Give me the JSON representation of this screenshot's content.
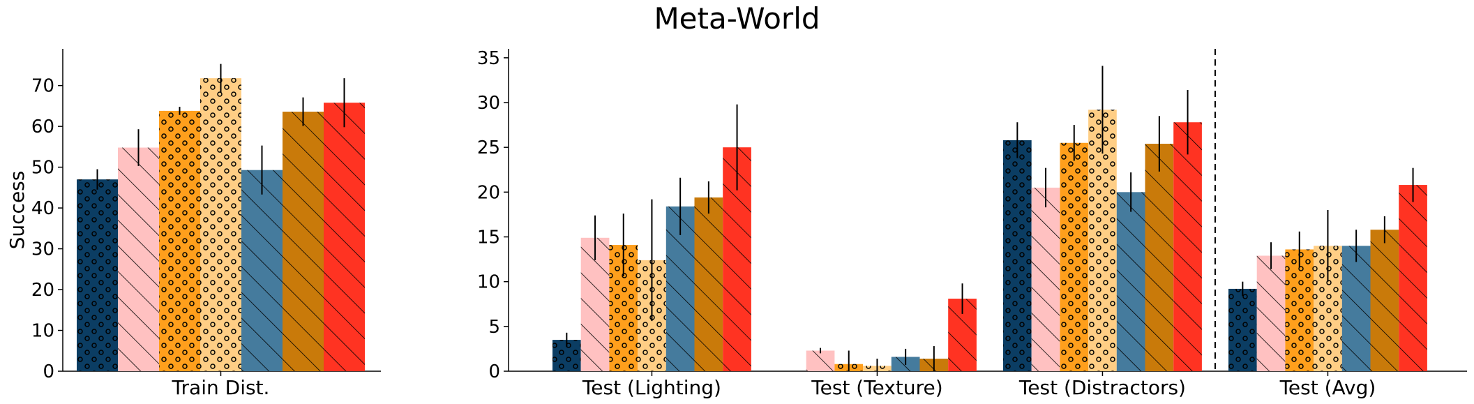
{
  "title": "Meta-World",
  "colors": {
    "s1": "#0b3d63",
    "s2": "#ffc1c1",
    "s3": "#ff9f1c",
    "s4": "#ffce85",
    "s5": "#457b9d",
    "s6": "#c97a0a",
    "s7": "#ff3322"
  },
  "chart_data": [
    {
      "type": "bar",
      "ylabel": "Success",
      "ylim": [
        0,
        79
      ],
      "yticks": [
        0,
        10,
        20,
        30,
        40,
        50,
        60,
        70
      ],
      "categories": [
        "Train Dist."
      ],
      "series": [
        {
          "values": [
            47.0
          ],
          "err": [
            2.5
          ],
          "color": "#0b3d63",
          "hatch": "dots"
        },
        {
          "values": [
            54.8
          ],
          "err": [
            4.5
          ],
          "color": "#ffc1c1",
          "hatch": "slash"
        },
        {
          "values": [
            63.8
          ],
          "err": [
            1.0
          ],
          "color": "#ff9f1c",
          "hatch": "dots"
        },
        {
          "values": [
            71.8
          ],
          "err": [
            3.5
          ],
          "color": "#ffce85",
          "hatch": "dots"
        },
        {
          "values": [
            49.3
          ],
          "err": [
            6.0
          ],
          "color": "#457b9d",
          "hatch": "slash"
        },
        {
          "values": [
            63.6
          ],
          "err": [
            3.5
          ],
          "color": "#c97a0a",
          "hatch": "slash"
        },
        {
          "values": [
            65.8
          ],
          "err": [
            6.0
          ],
          "color": "#ff3322",
          "hatch": "slash"
        }
      ],
      "grid": false
    },
    {
      "type": "bar",
      "ylim": [
        0,
        36
      ],
      "yticks": [
        0,
        5,
        10,
        15,
        20,
        25,
        30,
        35
      ],
      "categories": [
        "Test (Lighting)",
        "Test (Texture)",
        "Test (Distractors)",
        "Test (Avg)"
      ],
      "divider_after_category": 2,
      "series": [
        {
          "values": [
            3.5,
            0.0,
            25.8,
            9.2
          ],
          "err": [
            0.8,
            0.0,
            2.0,
            0.8
          ],
          "color": "#0b3d63",
          "hatch": "dots"
        },
        {
          "values": [
            14.9,
            2.3,
            20.5,
            12.9
          ],
          "err": [
            2.5,
            0.3,
            2.2,
            1.5
          ],
          "color": "#ffc1c1",
          "hatch": "slash"
        },
        {
          "values": [
            14.1,
            0.8,
            25.5,
            13.6
          ],
          "err": [
            3.5,
            1.5,
            2.0,
            2.0
          ],
          "color": "#ff9f1c",
          "hatch": "dots"
        },
        {
          "values": [
            12.4,
            0.6,
            29.2,
            14.0
          ],
          "err": [
            6.8,
            0.8,
            4.9,
            4.0
          ],
          "color": "#ffce85",
          "hatch": "dots"
        },
        {
          "values": [
            18.4,
            1.6,
            20.0,
            14.0
          ],
          "err": [
            3.2,
            0.9,
            2.2,
            1.8
          ],
          "color": "#457b9d",
          "hatch": "slash"
        },
        {
          "values": [
            19.4,
            1.4,
            25.4,
            15.8
          ],
          "err": [
            1.8,
            1.4,
            3.1,
            1.5
          ],
          "color": "#c97a0a",
          "hatch": "slash"
        },
        {
          "values": [
            25.0,
            8.1,
            27.8,
            20.8
          ],
          "err": [
            4.8,
            1.7,
            3.6,
            1.9
          ],
          "color": "#ff3322",
          "hatch": "slash"
        }
      ],
      "grid": false
    }
  ]
}
